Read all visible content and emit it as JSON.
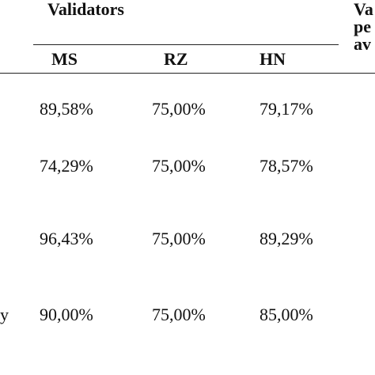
{
  "header": {
    "group": "Validators",
    "columns": [
      "MS",
      "RZ",
      "HN"
    ],
    "last_column_lines": [
      "Va",
      "pe",
      "av"
    ]
  },
  "table": {
    "rows": [
      {
        "cells": [
          "89,58%",
          "75,00%",
          "79,17%"
        ]
      },
      {
        "cells": [
          "74,29%",
          "75,00%",
          "78,57%"
        ]
      },
      {
        "cells": [
          "96,43%",
          "75,00%",
          "89,29%"
        ]
      },
      {
        "label": "y",
        "cells": [
          "90,00%",
          "75,00%",
          "85,00%"
        ]
      }
    ]
  }
}
